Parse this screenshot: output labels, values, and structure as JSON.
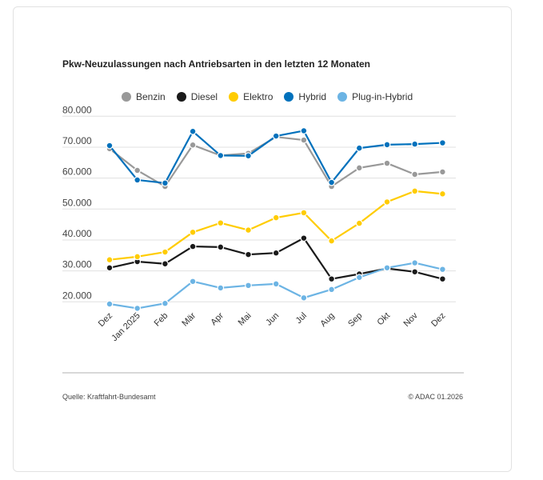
{
  "chart_data": {
    "type": "line",
    "title": "Pkw-Neuzulassungen nach Antriebsarten in den letzten 12 Monaten",
    "categories": [
      "Dez",
      "Jan 2025",
      "Feb",
      "Mär",
      "Apr",
      "Mai",
      "Jun",
      "Jul",
      "Aug",
      "Sep",
      "Okt",
      "Nov",
      "Dez"
    ],
    "ylim": [
      20000,
      80000
    ],
    "yticks": [
      "80.000",
      "70.000",
      "60.000",
      "50.000",
      "40.000",
      "30.000",
      "20.000"
    ],
    "ytick_values": [
      80000,
      70000,
      60000,
      50000,
      40000,
      30000,
      20000
    ],
    "grid": true,
    "legend_position": "top",
    "series": [
      {
        "name": "Benzin",
        "color": "#999999",
        "values": [
          69500,
          62500,
          57300,
          70700,
          67300,
          68000,
          73300,
          72300,
          57300,
          63300,
          64800,
          61200,
          62000
        ]
      },
      {
        "name": "Diesel",
        "color": "#1a1a1a",
        "values": [
          31000,
          33000,
          32300,
          37900,
          37700,
          35300,
          35800,
          40600,
          27400,
          29000,
          30800,
          29700,
          27400
        ]
      },
      {
        "name": "Elektro",
        "color": "#ffcc00",
        "values": [
          33600,
          34600,
          36100,
          42500,
          45500,
          43200,
          47200,
          48800,
          39700,
          45400,
          52300,
          55800,
          54900
        ]
      },
      {
        "name": "Hybrid",
        "color": "#0071bc",
        "values": [
          70500,
          59400,
          58400,
          75100,
          67300,
          67200,
          73600,
          75300,
          58600,
          69700,
          70800,
          71000,
          71400
        ]
      },
      {
        "name": "Plug-in-Hybrid",
        "color": "#6cb4e4",
        "values": [
          19300,
          17900,
          19500,
          26600,
          24500,
          25300,
          25800,
          21300,
          24000,
          27900,
          31000,
          32600,
          30500
        ]
      }
    ]
  },
  "footer": {
    "source": "Quelle: Kraftfahrt-Bundesamt",
    "copyright": "© ADAC 01.2026"
  }
}
